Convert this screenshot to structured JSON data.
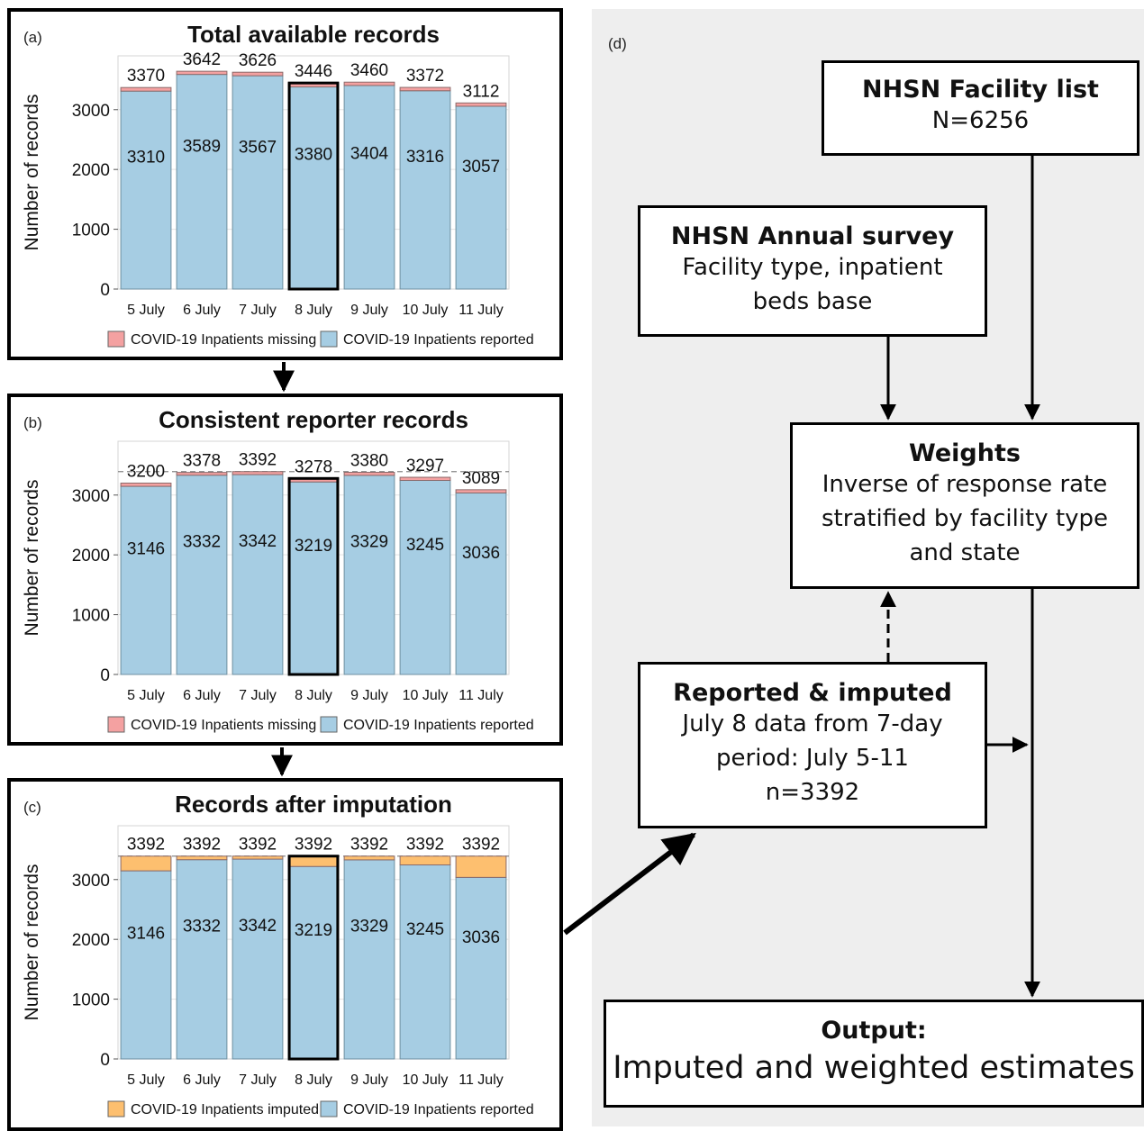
{
  "chart_data": [
    {
      "type": "bar",
      "stacked": true,
      "panel_label": "(a)",
      "title": "Total available records",
      "ylabel": "Number of records",
      "ylim": [
        0,
        3900
      ],
      "yticks": [
        0,
        1000,
        2000,
        3000
      ],
      "grid": true,
      "reference_line": null,
      "categories": [
        "5 July",
        "6 July",
        "7 July",
        "8 July",
        "9 July",
        "10 July",
        "11 July"
      ],
      "highlight_category": "8 July",
      "totals": [
        "3370",
        "3642",
        "3626",
        "3446",
        "3460",
        "3372",
        "3112"
      ],
      "series": [
        {
          "name": "COVID-19 Inpatients reported",
          "color": "#a6cde3",
          "values": [
            3310,
            3589,
            3567,
            3380,
            3404,
            3316,
            3057
          ]
        },
        {
          "name": "COVID-19 Inpatients missing",
          "color": "#f4a1a1",
          "values": [
            60,
            53,
            59,
            66,
            56,
            56,
            55
          ]
        }
      ],
      "legend": [
        "COVID-19 Inpatients missing",
        "COVID-19 Inpatients reported"
      ],
      "legend_colors": [
        "#f4a1a1",
        "#a6cde3"
      ],
      "legend_position": "bottom"
    },
    {
      "type": "bar",
      "stacked": true,
      "panel_label": "(b)",
      "title": "Consistent reporter records",
      "ylabel": "Number of records",
      "ylim": [
        0,
        3900
      ],
      "yticks": [
        0,
        1000,
        2000,
        3000
      ],
      "grid": true,
      "reference_line": 3392,
      "categories": [
        "5 July",
        "6 July",
        "7 July",
        "8 July",
        "9 July",
        "10 July",
        "11 July"
      ],
      "highlight_category": "8 July",
      "totals": [
        "3200",
        "3378",
        "3392",
        "3278",
        "3380",
        "3297",
        "3089"
      ],
      "series": [
        {
          "name": "COVID-19 Inpatients reported",
          "color": "#a6cde3",
          "values": [
            3146,
            3332,
            3342,
            3219,
            3329,
            3245,
            3036
          ]
        },
        {
          "name": "COVID-19 Inpatients missing",
          "color": "#f4a1a1",
          "values": [
            54,
            46,
            50,
            59,
            51,
            52,
            53
          ]
        }
      ],
      "legend": [
        "COVID-19 Inpatients missing",
        "COVID-19 Inpatients reported"
      ],
      "legend_colors": [
        "#f4a1a1",
        "#a6cde3"
      ],
      "legend_position": "bottom"
    },
    {
      "type": "bar",
      "stacked": true,
      "panel_label": "(c)",
      "title": "Records after imputation",
      "ylabel": "Number of records",
      "ylim": [
        0,
        3900
      ],
      "yticks": [
        0,
        1000,
        2000,
        3000
      ],
      "grid": true,
      "reference_line": 3392,
      "categories": [
        "5 July",
        "6 July",
        "7 July",
        "8 July",
        "9 July",
        "10 July",
        "11 July"
      ],
      "highlight_category": "8 July",
      "totals": [
        "3392",
        "3392",
        "3392",
        "3392",
        "3392",
        "3392",
        "3392"
      ],
      "series": [
        {
          "name": "COVID-19 Inpatients reported",
          "color": "#a6cde3",
          "values": [
            3146,
            3332,
            3342,
            3219,
            3329,
            3245,
            3036
          ]
        },
        {
          "name": "COVID-19 Inpatients imputed",
          "color": "#fdbf6f",
          "values": [
            246,
            60,
            50,
            173,
            63,
            147,
            356
          ]
        }
      ],
      "legend": [
        "COVID-19 Inpatients imputed",
        "COVID-19 Inpatients reported"
      ],
      "legend_colors": [
        "#fdbf6f",
        "#a6cde3"
      ],
      "legend_position": "bottom"
    }
  ],
  "flowchart": {
    "panel_label": "(d)",
    "facility_list": {
      "title": "NHSN Facility list",
      "lines": [
        "N=6256"
      ]
    },
    "annual_survey": {
      "title": "NHSN Annual survey",
      "lines": [
        "Facility type, inpatient",
        "beds base"
      ]
    },
    "weights": {
      "title": "Weights",
      "lines": [
        "Inverse of response rate",
        "stratified by facility type",
        "and state"
      ]
    },
    "reported_imputed": {
      "title": "Reported & imputed",
      "lines": [
        "July 8 data from 7-day",
        "period: July 5-11",
        "n=3392"
      ]
    },
    "output": {
      "title": "Output:",
      "lines": [
        "Imputed and weighted estimates"
      ]
    }
  }
}
